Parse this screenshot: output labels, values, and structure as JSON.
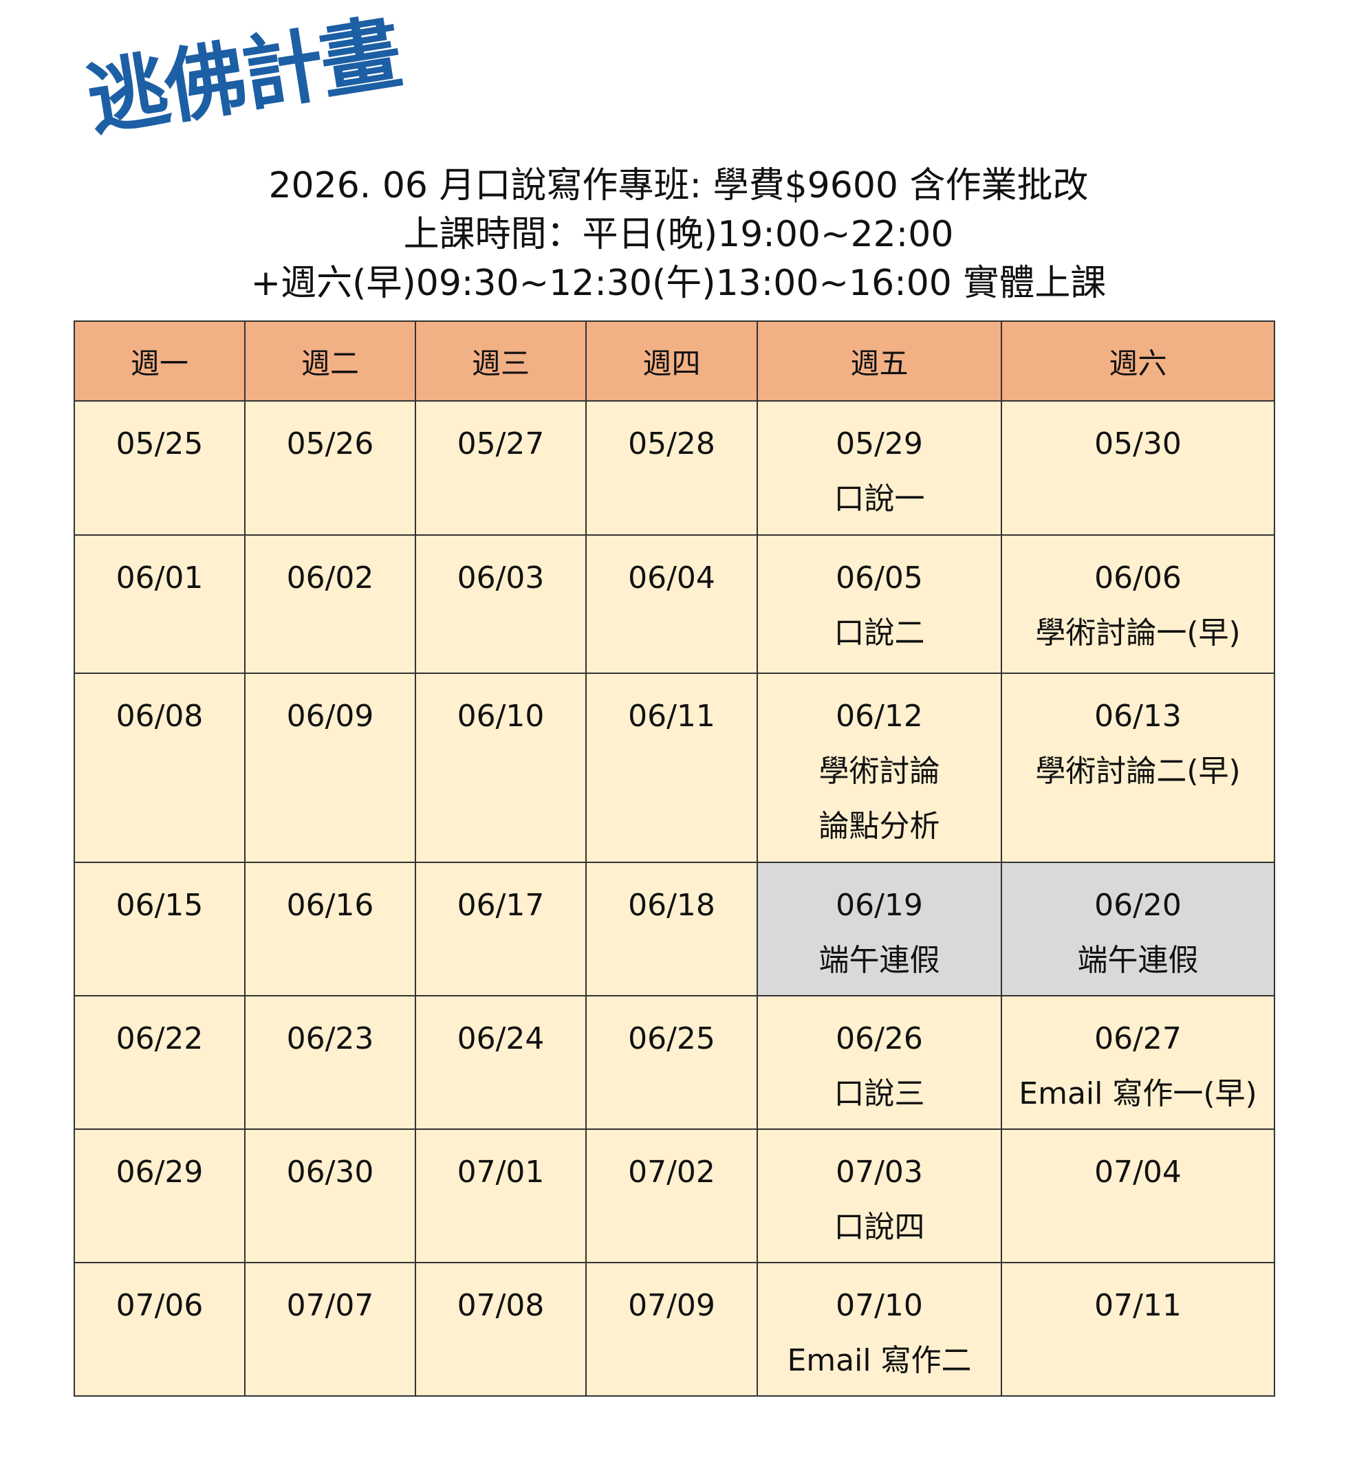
{
  "logo": {
    "text": "逃佛計畫",
    "color": "#1c5fa5"
  },
  "title": {
    "line1": "2026. 06 月口說寫作專班: 學費$9600 含作業批改",
    "line2": "上課時間：平日(晚)19:00~22:00",
    "line3": "+週六(早)09:30~12:30(午)13:00~16:00 實體上課"
  },
  "colors": {
    "header": "#f2b085",
    "cell": "#fff0cf",
    "holiday": "#d9d9d9"
  },
  "headers": [
    "週一",
    "週二",
    "週三",
    "週四",
    "週五",
    "週六"
  ],
  "weeks": [
    [
      {
        "date": "05/25"
      },
      {
        "date": "05/26"
      },
      {
        "date": "05/27"
      },
      {
        "date": "05/28"
      },
      {
        "date": "05/29",
        "notes": [
          "口說一"
        ]
      },
      {
        "date": "05/30"
      }
    ],
    [
      {
        "date": "06/01"
      },
      {
        "date": "06/02"
      },
      {
        "date": "06/03"
      },
      {
        "date": "06/04"
      },
      {
        "date": "06/05",
        "notes": [
          "口說二"
        ]
      },
      {
        "date": "06/06",
        "notes": [
          "學術討論一(早)"
        ]
      }
    ],
    [
      {
        "date": "06/08"
      },
      {
        "date": "06/09"
      },
      {
        "date": "06/10"
      },
      {
        "date": "06/11"
      },
      {
        "date": "06/12",
        "notes": [
          "學術討論",
          "論點分析"
        ]
      },
      {
        "date": "06/13",
        "notes": [
          "學術討論二(早)"
        ]
      }
    ],
    [
      {
        "date": "06/15"
      },
      {
        "date": "06/16"
      },
      {
        "date": "06/17"
      },
      {
        "date": "06/18"
      },
      {
        "date": "06/19",
        "notes": [
          "端午連假"
        ],
        "holiday": true
      },
      {
        "date": "06/20",
        "notes": [
          "端午連假"
        ],
        "holiday": true
      }
    ],
    [
      {
        "date": "06/22"
      },
      {
        "date": "06/23"
      },
      {
        "date": "06/24"
      },
      {
        "date": "06/25"
      },
      {
        "date": "06/26",
        "notes": [
          "口說三"
        ]
      },
      {
        "date": "06/27",
        "notes": [
          "Email 寫作一(早)"
        ]
      }
    ],
    [
      {
        "date": "06/29"
      },
      {
        "date": "06/30"
      },
      {
        "date": "07/01"
      },
      {
        "date": "07/02"
      },
      {
        "date": "07/03",
        "notes": [
          "口說四"
        ]
      },
      {
        "date": "07/04"
      }
    ],
    [
      {
        "date": "07/06"
      },
      {
        "date": "07/07"
      },
      {
        "date": "07/08"
      },
      {
        "date": "07/09"
      },
      {
        "date": "07/10",
        "notes": [
          "Email 寫作二"
        ]
      },
      {
        "date": "07/11"
      }
    ]
  ]
}
